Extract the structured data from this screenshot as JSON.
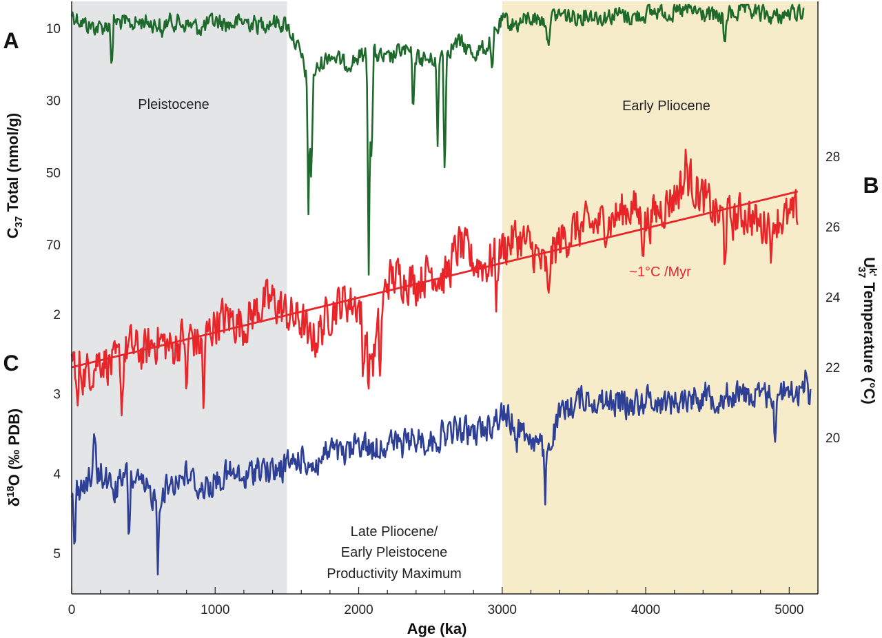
{
  "chart_data": {
    "type": "line",
    "x_axis": {
      "label": "Age (ka)",
      "range": [
        0,
        5200
      ],
      "ticks": [
        0,
        1000,
        2000,
        3000,
        4000,
        5000
      ],
      "tick_labels": [
        "0",
        "1000",
        "2000",
        "3000",
        "4000",
        "5000"
      ]
    },
    "panels": [
      {
        "letter": "A",
        "ylabel_main": "C",
        "ylabel_sub": "37",
        "ylabel_rest": " Total (nmol/g)",
        "axis_side": "left",
        "inverted": true,
        "tick_labels": [
          "10",
          "30",
          "50",
          "70"
        ],
        "ticks": [
          10,
          30,
          50,
          70
        ],
        "series": {
          "color": "#1e6a2c",
          "base_points": [
            [
              0,
              6
            ],
            [
              100,
              9
            ],
            [
              200,
              10
            ],
            [
              300,
              8
            ],
            [
              400,
              9
            ],
            [
              500,
              8
            ],
            [
              600,
              9
            ],
            [
              700,
              8
            ],
            [
              800,
              9
            ],
            [
              900,
              10
            ],
            [
              1000,
              8
            ],
            [
              1100,
              9
            ],
            [
              1200,
              8
            ],
            [
              1300,
              9
            ],
            [
              1400,
              8
            ],
            [
              1500,
              9
            ],
            [
              1550,
              13
            ],
            [
              1600,
              18
            ],
            [
              1650,
              25
            ],
            [
              1700,
              22
            ],
            [
              1800,
              17
            ],
            [
              1900,
              20
            ],
            [
              2000,
              18
            ],
            [
              2100,
              17
            ],
            [
              2200,
              19
            ],
            [
              2300,
              16
            ],
            [
              2400,
              18
            ],
            [
              2500,
              19
            ],
            [
              2600,
              16
            ],
            [
              2700,
              14
            ],
            [
              2800,
              17
            ],
            [
              2900,
              15
            ],
            [
              3000,
              8
            ],
            [
              3100,
              9
            ],
            [
              3200,
              7
            ],
            [
              3300,
              8
            ],
            [
              3400,
              6
            ],
            [
              3500,
              7
            ],
            [
              3600,
              6
            ],
            [
              3700,
              7
            ],
            [
              3800,
              6
            ],
            [
              3900,
              7
            ],
            [
              4000,
              6
            ],
            [
              4100,
              5
            ],
            [
              4200,
              6
            ],
            [
              4300,
              5
            ],
            [
              4400,
              6
            ],
            [
              4500,
              7
            ],
            [
              4600,
              6
            ],
            [
              4700,
              5
            ],
            [
              4800,
              6
            ],
            [
              4900,
              7
            ],
            [
              5000,
              6
            ],
            [
              5100,
              5
            ]
          ],
          "spikes": [
            [
              280,
              22
            ],
            [
              630,
              14
            ],
            [
              1650,
              61
            ],
            [
              1670,
              55
            ],
            [
              2070,
              76
            ],
            [
              2090,
              50
            ],
            [
              2380,
              35
            ],
            [
              2550,
              43
            ],
            [
              2600,
              53
            ],
            [
              2930,
              25
            ],
            [
              3320,
              16
            ],
            [
              4550,
              17
            ]
          ]
        }
      },
      {
        "letter": "B",
        "ylabel_main": "U",
        "ylabel_sup": "k'",
        "ylabel_sub": "37",
        "ylabel_rest": " Temperature (°C)",
        "axis_side": "right",
        "inverted": false,
        "tick_labels": [
          "20",
          "22",
          "24",
          "26",
          "28"
        ],
        "ticks": [
          20,
          22,
          24,
          26,
          28
        ],
        "series": {
          "color": "#e8262a",
          "base_points": [
            [
              0,
              22.2
            ],
            [
              100,
              21.8
            ],
            [
              200,
              22.3
            ],
            [
              300,
              22.0
            ],
            [
              400,
              22.6
            ],
            [
              500,
              22.4
            ],
            [
              600,
              22.8
            ],
            [
              700,
              22.5
            ],
            [
              800,
              23.0
            ],
            [
              900,
              22.6
            ],
            [
              1000,
              23.3
            ],
            [
              1100,
              23.4
            ],
            [
              1200,
              23.2
            ],
            [
              1300,
              23.7
            ],
            [
              1400,
              23.9
            ],
            [
              1500,
              23.5
            ],
            [
              1600,
              23.3
            ],
            [
              1700,
              22.8
            ],
            [
              1800,
              23.6
            ],
            [
              1900,
              23.9
            ],
            [
              2000,
              23.8
            ],
            [
              2100,
              22.2
            ],
            [
              2200,
              24.5
            ],
            [
              2300,
              24.6
            ],
            [
              2400,
              24.4
            ],
            [
              2500,
              24.8
            ],
            [
              2600,
              24.5
            ],
            [
              2700,
              25.5
            ],
            [
              2800,
              25.0
            ],
            [
              2900,
              24.9
            ],
            [
              3000,
              25.4
            ],
            [
              3100,
              25.7
            ],
            [
              3200,
              25.4
            ],
            [
              3300,
              24.8
            ],
            [
              3400,
              25.6
            ],
            [
              3500,
              25.9
            ],
            [
              3600,
              26.0
            ],
            [
              3700,
              26.1
            ],
            [
              3800,
              26.3
            ],
            [
              3900,
              26.6
            ],
            [
              4000,
              26.1
            ],
            [
              4100,
              26.5
            ],
            [
              4200,
              26.9
            ],
            [
              4300,
              27.4
            ],
            [
              4400,
              26.8
            ],
            [
              4500,
              26.3
            ],
            [
              4600,
              26.2
            ],
            [
              4700,
              26.4
            ],
            [
              4800,
              26.0
            ],
            [
              4900,
              26.3
            ],
            [
              5000,
              26.2
            ],
            [
              5060,
              26.4
            ]
          ],
          "spikes": [
            [
              40,
              20.5
            ],
            [
              350,
              20.7
            ],
            [
              800,
              20.8
            ],
            [
              920,
              20.7
            ],
            [
              1650,
              22.4
            ],
            [
              2030,
              21.5
            ],
            [
              2070,
              21.4
            ],
            [
              2150,
              21.7
            ],
            [
              2960,
              23.8
            ],
            [
              3320,
              23.6
            ],
            [
              3980,
              25.6
            ],
            [
              4550,
              25.1
            ],
            [
              4880,
              25.0
            ],
            [
              4280,
              27.9
            ]
          ]
        },
        "trend": {
          "from": [
            0,
            22.0
          ],
          "to": [
            5060,
            27.0
          ],
          "color": "#e8262a"
        },
        "annotation": "~1°C /Myr"
      },
      {
        "letter": "C",
        "ylabel_main": "δ",
        "ylabel_sup": "18",
        "ylabel_rest": "O (‰ PDB)",
        "axis_side": "left",
        "inverted": true,
        "tick_labels": [
          "2",
          "3",
          "4",
          "5"
        ],
        "ticks": [
          2,
          3,
          4,
          5
        ],
        "series": {
          "color": "#2e3f96",
          "base_points": [
            [
              0,
              4.3
            ],
            [
              100,
              4.1
            ],
            [
              200,
              4.0
            ],
            [
              300,
              4.2
            ],
            [
              400,
              4.0
            ],
            [
              500,
              4.2
            ],
            [
              600,
              4.3
            ],
            [
              700,
              4.1
            ],
            [
              800,
              4.0
            ],
            [
              900,
              4.2
            ],
            [
              1000,
              4.1
            ],
            [
              1100,
              4.0
            ],
            [
              1200,
              4.1
            ],
            [
              1300,
              3.9
            ],
            [
              1400,
              4.0
            ],
            [
              1500,
              3.9
            ],
            [
              1600,
              3.8
            ],
            [
              1700,
              3.9
            ],
            [
              1800,
              3.7
            ],
            [
              1900,
              3.8
            ],
            [
              2000,
              3.6
            ],
            [
              2100,
              3.7
            ],
            [
              2200,
              3.6
            ],
            [
              2300,
              3.65
            ],
            [
              2400,
              3.55
            ],
            [
              2500,
              3.6
            ],
            [
              2600,
              3.5
            ],
            [
              2700,
              3.45
            ],
            [
              2800,
              3.5
            ],
            [
              2900,
              3.4
            ],
            [
              3000,
              3.25
            ],
            [
              3100,
              3.4
            ],
            [
              3200,
              3.55
            ],
            [
              3300,
              3.75
            ],
            [
              3400,
              3.3
            ],
            [
              3500,
              3.1
            ],
            [
              3600,
              3.05
            ],
            [
              3700,
              3.1
            ],
            [
              3800,
              3.1
            ],
            [
              3900,
              3.15
            ],
            [
              4000,
              3.05
            ],
            [
              4100,
              3.1
            ],
            [
              4200,
              3.1
            ],
            [
              4300,
              3.05
            ],
            [
              4400,
              3.0
            ],
            [
              4500,
              3.05
            ],
            [
              4600,
              3.0
            ],
            [
              4700,
              3.0
            ],
            [
              4800,
              3.05
            ],
            [
              4900,
              3.0
            ],
            [
              5000,
              2.95
            ],
            [
              5100,
              3.0
            ],
            [
              5150,
              2.95
            ]
          ],
          "spikes": [
            [
              20,
              5.0
            ],
            [
              400,
              4.9
            ],
            [
              600,
              5.15
            ],
            [
              160,
              3.45
            ],
            [
              3300,
              4.3
            ],
            [
              3100,
              3.6
            ],
            [
              4900,
              3.55
            ],
            [
              5120,
              2.65
            ]
          ]
        }
      }
    ],
    "regions": [
      {
        "name": "Pleistocene",
        "from": 0,
        "to": 1500,
        "color": "#e4e5e6"
      },
      {
        "name": "Early Pliocene",
        "from": 3000,
        "to": 5200,
        "color": "#f6ecc9"
      }
    ],
    "region_labels": {
      "pleistocene": "Pleistocene",
      "early_pliocene": "Early Pliocene",
      "late_line1": "Late Pliocene/",
      "late_line2": "Early Pleistocene",
      "late_line3": "Productivity Maximum"
    },
    "grid": false,
    "legend": "none"
  }
}
